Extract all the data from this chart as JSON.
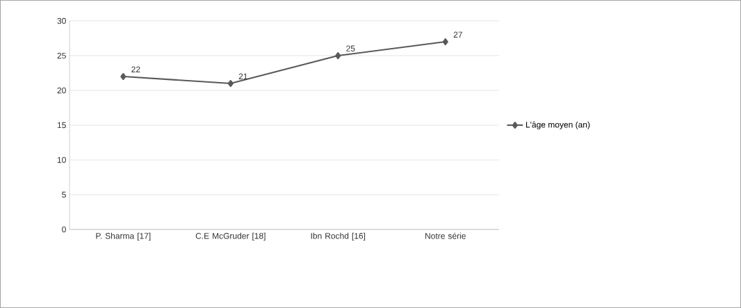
{
  "chart_data": {
    "type": "line",
    "categories": [
      "P. Sharma [17]",
      "C.E McGruder [18]",
      "Ibn Rochd [16]",
      "Notre série"
    ],
    "series": [
      {
        "name": "L'âge moyen (an)",
        "color": "#595959",
        "values": [
          22,
          21,
          25,
          27
        ]
      }
    ],
    "ylim": [
      0,
      30
    ],
    "yticks": [
      0,
      5,
      10,
      15,
      20,
      25,
      30
    ],
    "grid": "y",
    "legend": "right",
    "marker": "diamond",
    "data_labels": true
  }
}
